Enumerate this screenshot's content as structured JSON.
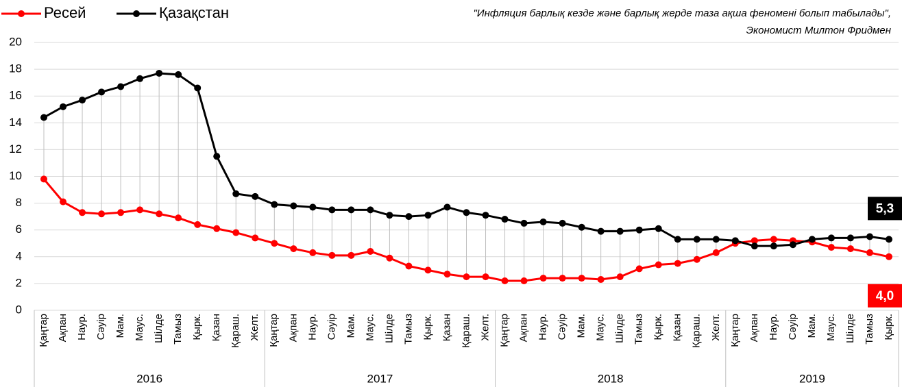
{
  "chart_data": {
    "type": "line",
    "annotation": [
      "\"Инфляция барлық кезде және барлық жерде таза ақша феномені болып табылады\",",
      "Экономист Милтон Фридмен"
    ],
    "category_groups": [
      {
        "name": "2016",
        "categories": [
          "Қаңтар",
          "Ақпан",
          "Наур.",
          "Сәуір",
          "Мам.",
          "Маус.",
          "Шілде",
          "Тамыз",
          "Қырк.",
          "Қазан",
          "Қараш.",
          "Желт."
        ]
      },
      {
        "name": "2017",
        "categories": [
          "Қаңтар",
          "Ақпан",
          "Наур.",
          "Сәуір",
          "Мам.",
          "Маус.",
          "Шілде",
          "Тамыз",
          "Қырк.",
          "Қазан",
          "Қараш.",
          "Желт."
        ]
      },
      {
        "name": "2018",
        "categories": [
          "Қаңтар",
          "Ақпан",
          "Наур.",
          "Сәуір",
          "Мам.",
          "Маус.",
          "Шілде",
          "Тамыз",
          "Қырк.",
          "Қазан",
          "Қараш.",
          "Желт."
        ]
      },
      {
        "name": "2019",
        "categories": [
          "Қаңтар",
          "Ақпан",
          "Наур.",
          "Сәуір",
          "Мам.",
          "Маус.",
          "Шілде",
          "Тамыз",
          "Қырк."
        ]
      }
    ],
    "series": [
      {
        "name": "Ресей",
        "color": "#ff0000",
        "values": [
          9.8,
          8.1,
          7.3,
          7.2,
          7.3,
          7.5,
          7.2,
          6.9,
          6.4,
          6.1,
          5.8,
          5.4,
          5.0,
          4.6,
          4.3,
          4.1,
          4.1,
          4.4,
          3.9,
          3.3,
          3.0,
          2.7,
          2.5,
          2.5,
          2.2,
          2.2,
          2.4,
          2.4,
          2.4,
          2.3,
          2.5,
          3.1,
          3.4,
          3.5,
          3.8,
          4.3,
          5.0,
          5.2,
          5.3,
          5.2,
          5.1,
          4.7,
          4.6,
          4.3,
          4.0
        ],
        "value_labels": [
          null,
          null,
          null,
          null,
          null,
          null,
          null,
          null,
          null,
          null,
          null,
          null,
          null,
          null,
          null,
          null,
          null,
          null,
          null,
          null,
          null,
          null,
          null,
          null,
          null,
          null,
          null,
          null,
          null,
          null,
          null,
          null,
          null,
          null,
          null,
          null,
          null,
          null,
          null,
          null,
          null,
          null,
          null,
          null,
          "4,0"
        ]
      },
      {
        "name": "Қазақстан",
        "color": "#000000",
        "values": [
          14.4,
          15.2,
          15.7,
          16.3,
          16.7,
          17.3,
          17.7,
          17.6,
          16.6,
          11.5,
          8.7,
          8.5,
          7.9,
          7.8,
          7.7,
          7.5,
          7.5,
          7.5,
          7.1,
          7.0,
          7.1,
          7.7,
          7.3,
          7.1,
          6.8,
          6.5,
          6.6,
          6.5,
          6.2,
          5.9,
          5.9,
          6.0,
          6.1,
          5.3,
          5.3,
          5.3,
          5.2,
          4.8,
          4.8,
          4.9,
          5.3,
          5.4,
          5.4,
          5.5,
          5.3
        ],
        "value_labels": [
          null,
          null,
          null,
          null,
          null,
          null,
          null,
          null,
          null,
          null,
          null,
          null,
          null,
          null,
          null,
          null,
          null,
          null,
          null,
          null,
          null,
          null,
          null,
          null,
          null,
          null,
          null,
          null,
          null,
          null,
          null,
          null,
          null,
          null,
          null,
          null,
          null,
          null,
          null,
          null,
          null,
          null,
          null,
          null,
          "5,3"
        ]
      }
    ],
    "ylim": [
      0,
      20
    ],
    "yticks": [
      0,
      2,
      4,
      6,
      8,
      10,
      12,
      14,
      16,
      18,
      20
    ],
    "grid": true,
    "legend": "top-left"
  }
}
